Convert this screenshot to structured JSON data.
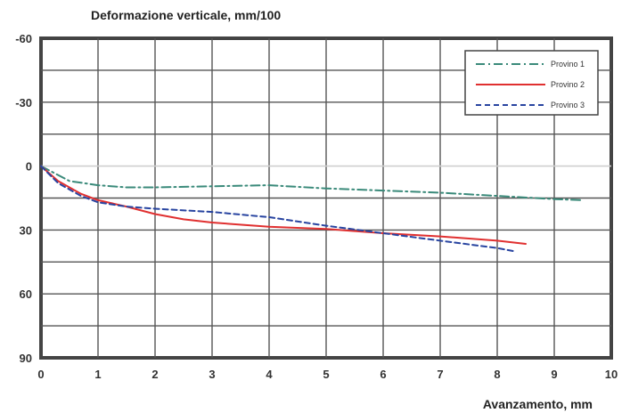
{
  "chart_data": {
    "type": "line",
    "title": "",
    "ylabel": "Deformazione verticale, mm/100",
    "xlabel": "Avanzamento, mm",
    "xlim": [
      0,
      10
    ],
    "ylim": [
      -60,
      90
    ],
    "y_inverted": true,
    "grid": true,
    "legend_position": "top-right",
    "x_ticks": [
      "0",
      "1",
      "2",
      "3",
      "4",
      "5",
      "6",
      "7",
      "8",
      "9",
      "10"
    ],
    "y_ticks": [
      "-60",
      "-30",
      "0",
      "30",
      "60",
      "90"
    ],
    "series": [
      {
        "name": "Provino 1",
        "color": "#3a8a7a",
        "style": "dash-dot",
        "points": [
          [
            0,
            0
          ],
          [
            0.5,
            7
          ],
          [
            1,
            9
          ],
          [
            1.5,
            10
          ],
          [
            2,
            10
          ],
          [
            3,
            9.5
          ],
          [
            4,
            9
          ],
          [
            5,
            10.5
          ],
          [
            6,
            11.5
          ],
          [
            7,
            12.5
          ],
          [
            8,
            14
          ],
          [
            9,
            15.5
          ],
          [
            9.5,
            16
          ]
        ]
      },
      {
        "name": "Provino 2",
        "color": "#e03030",
        "style": "solid",
        "points": [
          [
            0,
            0
          ],
          [
            0.3,
            7
          ],
          [
            0.7,
            13
          ],
          [
            1,
            16
          ],
          [
            1.5,
            19
          ],
          [
            2,
            22.5
          ],
          [
            2.5,
            25
          ],
          [
            3,
            26.5
          ],
          [
            4,
            28.5
          ],
          [
            5,
            29.5
          ],
          [
            6,
            31.5
          ],
          [
            7,
            33
          ],
          [
            8,
            35
          ],
          [
            8.5,
            36.5
          ]
        ]
      },
      {
        "name": "Provino 3",
        "color": "#2844a0",
        "style": "dashed",
        "points": [
          [
            0,
            0
          ],
          [
            0.3,
            8
          ],
          [
            0.7,
            14
          ],
          [
            1,
            17
          ],
          [
            1.5,
            19
          ],
          [
            2,
            20
          ],
          [
            3,
            21.5
          ],
          [
            4,
            24
          ],
          [
            5,
            28
          ],
          [
            6,
            31.5
          ],
          [
            7,
            35
          ],
          [
            8,
            38.5
          ],
          [
            8.3,
            40
          ]
        ]
      }
    ]
  }
}
